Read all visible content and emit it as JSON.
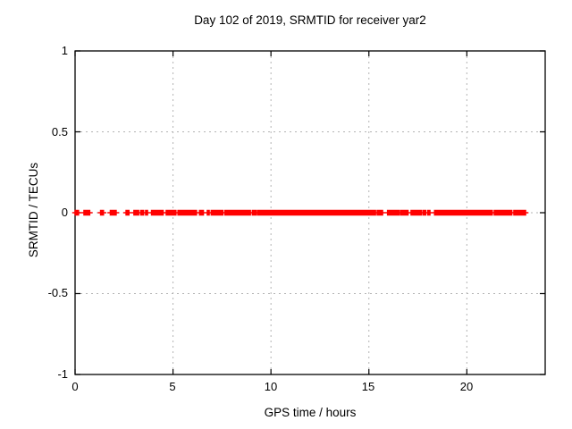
{
  "chart_data": {
    "type": "scatter",
    "title": "Day 102 of 2019, SRMTID for receiver yar2",
    "xlabel": "GPS time / hours",
    "ylabel": "SRMTID / TECUs",
    "xlim": [
      0,
      24
    ],
    "ylim": [
      -1,
      1
    ],
    "xticks": [
      "0",
      "5",
      "10",
      "15",
      "20"
    ],
    "yticks": [
      "1",
      "0.5",
      "0",
      "-0.5",
      "-1"
    ],
    "grid": true,
    "legend": "none",
    "marker": "plus",
    "marker_color": "#ff0000",
    "grid_color": "#b3b3b3",
    "border_color": "#000000",
    "background_color": "#ffffff",
    "y_value": 0,
    "x_segments": [
      [
        0.0,
        0.18
      ],
      [
        0.45,
        0.75
      ],
      [
        1.3,
        1.45
      ],
      [
        1.8,
        2.1
      ],
      [
        2.6,
        2.75
      ],
      [
        3.0,
        3.25
      ],
      [
        3.35,
        3.5
      ],
      [
        3.6,
        3.7
      ],
      [
        3.9,
        4.2
      ],
      [
        4.25,
        4.5
      ],
      [
        4.65,
        5.15
      ],
      [
        5.25,
        5.45
      ],
      [
        5.5,
        6.2
      ],
      [
        6.35,
        6.55
      ],
      [
        6.75,
        6.85
      ],
      [
        6.95,
        7.55
      ],
      [
        7.65,
        8.5
      ],
      [
        8.55,
        8.95
      ],
      [
        9.05,
        9.25
      ],
      [
        9.32,
        9.5
      ],
      [
        9.55,
        10.28
      ],
      [
        10.34,
        11.08
      ],
      [
        11.14,
        12.38
      ],
      [
        12.44,
        13.28
      ],
      [
        13.34,
        14.58
      ],
      [
        14.64,
        15.04
      ],
      [
        15.1,
        15.34
      ],
      [
        15.42,
        15.7
      ],
      [
        15.95,
        16.3
      ],
      [
        16.35,
        16.55
      ],
      [
        16.62,
        17.0
      ],
      [
        17.15,
        17.7
      ],
      [
        17.78,
        17.9
      ],
      [
        18.0,
        18.12
      ],
      [
        18.35,
        18.6
      ],
      [
        18.66,
        19.0
      ],
      [
        19.06,
        19.4
      ],
      [
        19.46,
        19.8
      ],
      [
        19.86,
        20.3
      ],
      [
        20.36,
        20.7
      ],
      [
        20.76,
        21.3
      ],
      [
        21.4,
        21.7
      ],
      [
        21.76,
        22.3
      ],
      [
        22.4,
        23.0
      ]
    ]
  }
}
